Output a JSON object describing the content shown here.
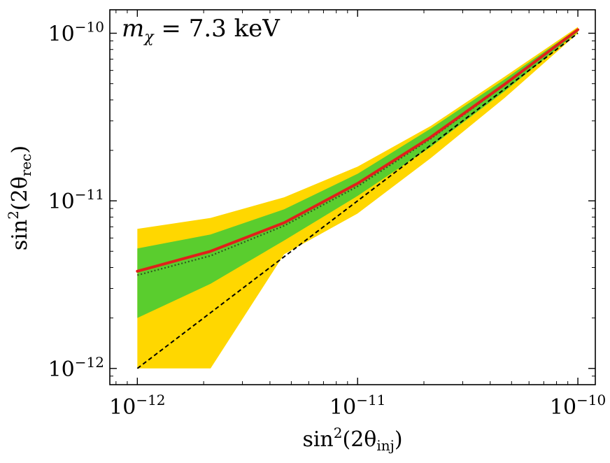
{
  "chart_data": {
    "type": "line",
    "annotation": "m_χ = 7.3 keV",
    "annotation_parts": {
      "symbol": "m",
      "subscript": "χ",
      "rest": " = 7.3 keV"
    },
    "xlabel": "sin²(2θinj)",
    "xlabel_parts": {
      "pre": "sin",
      "sup": "2",
      "mid": "(2θ",
      "sub": "inj",
      "post": ")"
    },
    "ylabel": "sin²(2θrec)",
    "ylabel_parts": {
      "pre": "sin",
      "sup": "2",
      "mid": "(2θ",
      "sub": "rec",
      "post": ")"
    },
    "xscale": "log",
    "yscale": "log",
    "xlim": [
      7.5e-13,
      1.2e-10
    ],
    "ylim": [
      8e-13,
      1.38e-10
    ],
    "grid": false,
    "x_ticks": [
      {
        "value": 1e-12,
        "base": "10",
        "exp": "−12"
      },
      {
        "value": 1e-11,
        "base": "10",
        "exp": "−11"
      },
      {
        "value": 1e-10,
        "base": "10",
        "exp": "−10"
      }
    ],
    "y_ticks": [
      {
        "value": 1e-12,
        "base": "10",
        "exp": "−12"
      },
      {
        "value": 1e-11,
        "base": "10",
        "exp": "−11"
      },
      {
        "value": 1e-10,
        "base": "10",
        "exp": "−10"
      }
    ],
    "x": [
      1e-12,
      2.15e-12,
      4.64e-12,
      1e-11,
      2.15e-11,
      4.64e-11,
      1e-10
    ],
    "bands": [
      {
        "color": "#FFD700",
        "lower": [
          1e-12,
          1e-12,
          4.8e-12,
          8.4e-12,
          1.8e-11,
          4.1e-11,
          1e-10
        ],
        "upper": [
          6.8e-12,
          7.9e-12,
          1.05e-11,
          1.6e-11,
          2.8e-11,
          5.5e-11,
          1.09e-10
        ]
      },
      {
        "color": "#5ACD2E",
        "lower": [
          2e-12,
          3.2e-12,
          5.8e-12,
          1.07e-11,
          2.1e-11,
          4.5e-11,
          1.02e-10
        ],
        "upper": [
          5.2e-12,
          6.3e-12,
          8.9e-12,
          1.45e-11,
          2.7e-11,
          5.3e-11,
          1.07e-10
        ]
      }
    ],
    "series": [
      {
        "style": "dashed",
        "color": "#000000",
        "values": [
          1e-12,
          2.15e-12,
          4.64e-12,
          1e-11,
          2.15e-11,
          4.64e-11,
          1e-10
        ]
      },
      {
        "style": "dotted",
        "color": "#2F5A1E",
        "values": [
          3.6e-12,
          4.7e-12,
          7.1e-12,
          1.22e-11,
          2.35e-11,
          4.9e-11,
          1.04e-10
        ]
      },
      {
        "style": "solid",
        "color": "#E0201A",
        "values": [
          3.8e-12,
          5e-12,
          7.4e-12,
          1.27e-11,
          2.4e-11,
          4.95e-11,
          1.05e-10
        ]
      }
    ]
  }
}
